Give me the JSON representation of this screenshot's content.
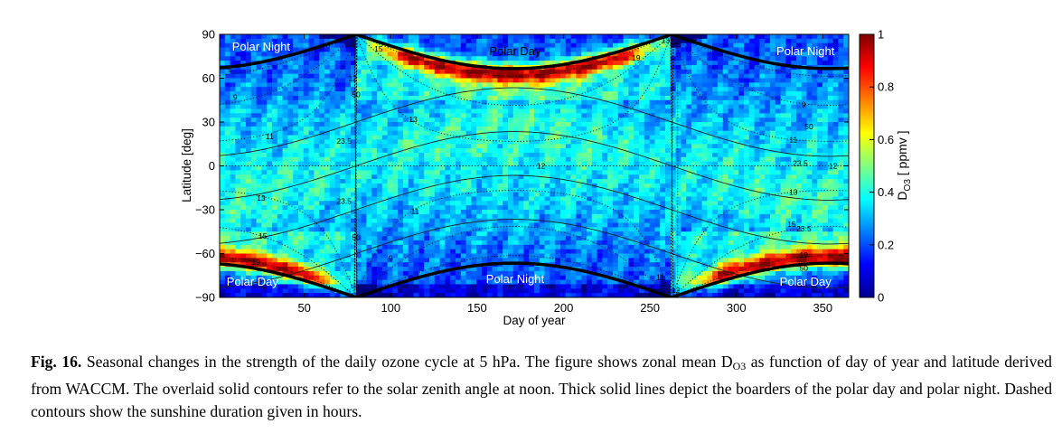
{
  "chart_data": {
    "type": "heatmap",
    "title": "",
    "xlabel": "Day of year",
    "ylabel": "Latitude [deg]",
    "xlim": [
      1,
      365
    ],
    "ylim": [
      -90,
      90
    ],
    "x_ticks": [
      50,
      100,
      150,
      200,
      250,
      300,
      350
    ],
    "y_ticks": [
      90,
      60,
      30,
      0,
      -30,
      -60,
      -90
    ],
    "y_tick_labels": [
      "90",
      "60",
      "30",
      "0",
      "−30",
      "−60",
      "−90"
    ],
    "colorbar": {
      "label_main": "D",
      "label_sub": "O3",
      "label_unit": " [ ppmv ]",
      "range": [
        0,
        1
      ],
      "ticks": [
        0,
        0.2,
        0.4,
        0.6,
        0.8,
        1
      ],
      "tick_labels": [
        "0",
        "0.2",
        "0.4",
        "0.6",
        "0.8",
        "1"
      ],
      "colormap": "jet"
    },
    "region_labels": [
      {
        "text": "Polar Night",
        "day": 25,
        "lat": 82
      },
      {
        "text": "Polar Day",
        "day": 172,
        "lat": 79
      },
      {
        "text": "Polar Night",
        "day": 340,
        "lat": 79
      },
      {
        "text": "Polar Day",
        "day": 20,
        "lat": -79
      },
      {
        "text": "Polar Night",
        "day": 172,
        "lat": -77
      },
      {
        "text": "Polar Day",
        "day": 340,
        "lat": -79
      }
    ],
    "zenith_contour_labels": [
      {
        "text": "23.5",
        "day": 73,
        "lat": 17
      },
      {
        "text": "50",
        "day": 80,
        "lat": 49
      },
      {
        "text": "12",
        "day": 78,
        "lat": 60
      },
      {
        "text": "23.5",
        "day": 73,
        "lat": -24
      },
      {
        "text": "50",
        "day": 80,
        "lat": -49
      },
      {
        "text": "12",
        "day": 187,
        "lat": 0
      },
      {
        "text": "50",
        "day": 342,
        "lat": 27
      },
      {
        "text": "23.5",
        "day": 337,
        "lat": 2
      },
      {
        "text": "12",
        "day": 356,
        "lat": 0
      },
      {
        "text": "23.5",
        "day": 339,
        "lat": -43
      },
      {
        "text": "50",
        "day": 339,
        "lat": -70
      },
      {
        "text": "12",
        "day": 265,
        "lat": -85
      },
      {
        "text": "12",
        "day": 264,
        "lat": 85
      }
    ],
    "sunshine_contour_labels": [
      {
        "text": "5",
        "day": 7,
        "lat": 66
      },
      {
        "text": "9",
        "day": 10,
        "lat": 47
      },
      {
        "text": "11",
        "day": 30,
        "lat": 20
      },
      {
        "text": "13",
        "day": 25,
        "lat": -22
      },
      {
        "text": "15",
        "day": 26,
        "lat": -48
      },
      {
        "text": "19",
        "day": 22,
        "lat": -66
      },
      {
        "text": "15",
        "day": 93,
        "lat": 80
      },
      {
        "text": "13",
        "day": 113,
        "lat": 32
      },
      {
        "text": "11",
        "day": 114,
        "lat": -31
      },
      {
        "text": "9",
        "day": 100,
        "lat": -63
      },
      {
        "text": "19",
        "day": 242,
        "lat": 74
      },
      {
        "text": "9",
        "day": 339,
        "lat": 42
      },
      {
        "text": "11",
        "day": 333,
        "lat": 18
      },
      {
        "text": "13",
        "day": 333,
        "lat": -18
      },
      {
        "text": "15",
        "day": 332,
        "lat": -40
      },
      {
        "text": "19",
        "day": 339,
        "lat": -61
      },
      {
        "text": "13",
        "day": 259,
        "lat": 86
      },
      {
        "text": "11",
        "day": 256,
        "lat": -76
      },
      {
        "text": "9",
        "day": 258,
        "lat": -80
      }
    ],
    "polar_boundary": {
      "axial_tilt_deg": 23.44,
      "equinox_days": [
        80,
        266
      ]
    },
    "grid": false
  },
  "caption": {
    "label": "Fig. 16.",
    "text_1": " Seasonal changes in the strength of the daily ozone cycle at 5 hPa. The figure shows zonal mean D",
    "sub": "O3",
    "text_2": " as function of day of year and latitude derived from WACCM. The overlaid solid contours refer to the solar zenith angle at noon. Thick solid lines depict the boarders of the polar day and polar night. Dashed contours show the sunshine duration given in hours."
  }
}
